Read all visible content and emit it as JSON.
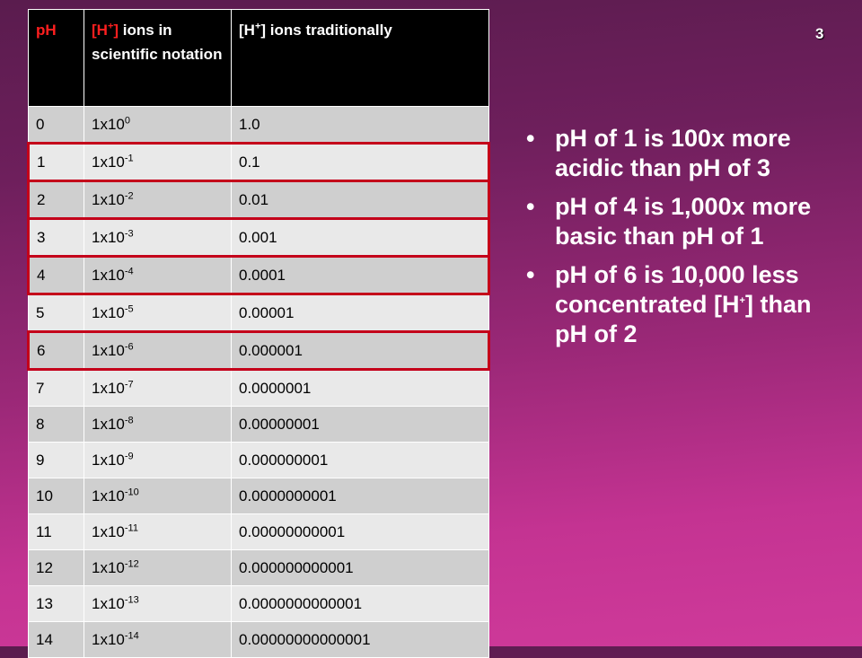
{
  "slide_number": "3",
  "table": {
    "headers": {
      "ph": "pH",
      "sci_ion": "[H",
      "sci_sup": "+",
      "sci_tail": "]",
      "sci_rest": " ions in scientific notation",
      "trad_ion": "[H",
      "trad_sup": "+",
      "trad_rest": "] ions traditionally"
    },
    "rows": [
      {
        "ph": "0",
        "base": "1x10",
        "exp": "0",
        "trad": "1.0"
      },
      {
        "ph": "1",
        "base": "1x10",
        "exp": "-1",
        "trad": "0.1"
      },
      {
        "ph": "2",
        "base": "1x10",
        "exp": "-2",
        "trad": "0.01"
      },
      {
        "ph": "3",
        "base": "1x10",
        "exp": "-3",
        "trad": "0.001"
      },
      {
        "ph": "4",
        "base": "1x10",
        "exp": "-4",
        "trad": "0.0001"
      },
      {
        "ph": "5",
        "base": "1x10",
        "exp": "-5",
        "trad": "0.00001"
      },
      {
        "ph": "6",
        "base": "1x10",
        "exp": "-6",
        "trad": "0.000001"
      },
      {
        "ph": "7",
        "base": "1x10",
        "exp": "-7",
        "trad": "0.0000001"
      },
      {
        "ph": "8",
        "base": "1x10",
        "exp": "-8",
        "trad": "0.00000001"
      },
      {
        "ph": "9",
        "base": "1x10",
        "exp": "-9",
        "trad": "0.000000001"
      },
      {
        "ph": "10",
        "base": "1x10",
        "exp": "-10",
        "trad": "0.0000000001"
      },
      {
        "ph": "11",
        "base": "1x10",
        "exp": "-11",
        "trad": "0.00000000001"
      },
      {
        "ph": "12",
        "base": "1x10",
        "exp": "-12",
        "trad": "0.000000000001"
      },
      {
        "ph": "13",
        "base": "1x10",
        "exp": "-13",
        "trad": "0.0000000000001"
      },
      {
        "ph": "14",
        "base": "1x10",
        "exp": "-14",
        "trad": "0.00000000000001"
      }
    ]
  },
  "bullets": {
    "marker": "•",
    "b1": "pH of 1 is 100x more acidic than pH of 3",
    "b2": "pH of 4 is 1,000x more basic than pH of 1",
    "b3_pre": "pH of 6 is 10,000 less concentrated [H",
    "b3_sup": "+",
    "b3_post": "] than pH of 2"
  },
  "colors": {
    "background_top": "#5a1c4e",
    "background_bottom": "#cf3a9a",
    "highlight_border": "#c4001a",
    "header_bg": "#000000",
    "header_red_text": "#ff1f1f"
  }
}
